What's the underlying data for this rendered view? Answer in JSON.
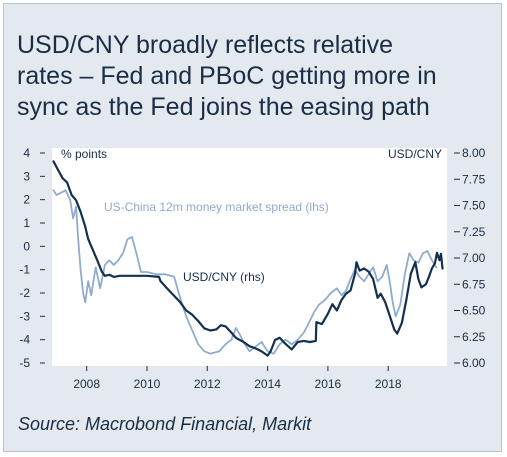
{
  "title_lines": [
    "USD/CNY broadly reflects relative",
    "rates – Fed and PBoC getting  more in",
    "sync as the Fed joins the easing path"
  ],
  "source": "Source: Macrobond Financial, Markit",
  "colors": {
    "frame_bg": "#e3e9ef",
    "plot_bg": "#ffffff",
    "usd_cny": "#14304f",
    "spread": "#8faccc",
    "text": "#1a2d45"
  },
  "chart_data": {
    "type": "line",
    "x_ticks": [
      "2008",
      "2010",
      "2012",
      "2014",
      "2016",
      "2018"
    ],
    "y_left": {
      "label": "% points",
      "ticks": [
        "4",
        "3",
        "2",
        "1",
        "0",
        "-1",
        "-2",
        "-3",
        "-4",
        "-5"
      ],
      "range": [
        -5,
        4
      ]
    },
    "y_right": {
      "label": "USD/CNY",
      "ticks": [
        "8.00",
        "7.75",
        "7.50",
        "7.25",
        "7.00",
        "6.75",
        "6.50",
        "6.25",
        "6.00"
      ],
      "range": [
        6.0,
        8.0
      ]
    },
    "grid": false,
    "series": [
      {
        "name": "US-China 12m money market spread (lhs)",
        "axis": "left",
        "color": "#8faccc",
        "points": [
          [
            2006.9,
            2.4
          ],
          [
            2007.0,
            2.2
          ],
          [
            2007.15,
            2.3
          ],
          [
            2007.3,
            2.4
          ],
          [
            2007.45,
            2.0
          ],
          [
            2007.55,
            1.2
          ],
          [
            2007.65,
            1.7
          ],
          [
            2007.72,
            0.3
          ],
          [
            2007.8,
            -1.0
          ],
          [
            2007.88,
            -2.0
          ],
          [
            2007.95,
            -2.4
          ],
          [
            2008.05,
            -1.5
          ],
          [
            2008.15,
            -2.1
          ],
          [
            2008.3,
            -0.9
          ],
          [
            2008.45,
            -1.8
          ],
          [
            2008.6,
            -0.8
          ],
          [
            2008.75,
            -0.6
          ],
          [
            2008.9,
            -0.8
          ],
          [
            2009.05,
            -0.6
          ],
          [
            2009.2,
            -0.3
          ],
          [
            2009.35,
            0.3
          ],
          [
            2009.5,
            0.4
          ],
          [
            2009.65,
            -0.3
          ],
          [
            2009.8,
            -1.1
          ],
          [
            2010.0,
            -1.1
          ],
          [
            2010.3,
            -1.2
          ],
          [
            2010.6,
            -1.2
          ],
          [
            2010.9,
            -1.3
          ],
          [
            2011.1,
            -2.2
          ],
          [
            2011.3,
            -3.0
          ],
          [
            2011.5,
            -3.6
          ],
          [
            2011.7,
            -4.2
          ],
          [
            2011.9,
            -4.5
          ],
          [
            2012.1,
            -4.6
          ],
          [
            2012.4,
            -4.5
          ],
          [
            2012.6,
            -4.2
          ],
          [
            2012.8,
            -4.0
          ],
          [
            2012.95,
            -3.5
          ],
          [
            2013.05,
            -3.7
          ],
          [
            2013.2,
            -4.1
          ],
          [
            2013.4,
            -4.5
          ],
          [
            2013.6,
            -4.3
          ],
          [
            2013.8,
            -4.1
          ],
          [
            2014.0,
            -4.5
          ],
          [
            2014.2,
            -4.6
          ],
          [
            2014.4,
            -4.2
          ],
          [
            2014.6,
            -4.0
          ],
          [
            2014.8,
            -4.2
          ],
          [
            2015.0,
            -4.0
          ],
          [
            2015.2,
            -3.7
          ],
          [
            2015.4,
            -3.2
          ],
          [
            2015.55,
            -2.8
          ],
          [
            2015.7,
            -2.5
          ],
          [
            2015.9,
            -2.3
          ],
          [
            2016.1,
            -2.0
          ],
          [
            2016.3,
            -1.8
          ],
          [
            2016.45,
            -2.1
          ],
          [
            2016.6,
            -1.9
          ],
          [
            2016.75,
            -1.4
          ],
          [
            2016.9,
            -1.0
          ],
          [
            2017.05,
            -1.3
          ],
          [
            2017.2,
            -1.5
          ],
          [
            2017.35,
            -1.2
          ],
          [
            2017.5,
            -0.9
          ],
          [
            2017.65,
            -1.5
          ],
          [
            2017.8,
            -1.3
          ],
          [
            2017.95,
            -0.8
          ],
          [
            2018.05,
            -1.5
          ],
          [
            2018.15,
            -2.4
          ],
          [
            2018.25,
            -3.0
          ],
          [
            2018.4,
            -2.5
          ],
          [
            2018.55,
            -1.2
          ],
          [
            2018.7,
            -0.3
          ],
          [
            2018.85,
            -0.6
          ],
          [
            2019.0,
            -0.7
          ],
          [
            2019.15,
            -0.3
          ],
          [
            2019.3,
            -0.2
          ],
          [
            2019.45,
            -0.6
          ],
          [
            2019.6,
            -0.9
          ]
        ]
      },
      {
        "name": "USD/CNY (rhs)",
        "axis": "right",
        "color": "#14304f",
        "points": [
          [
            2006.9,
            7.92
          ],
          [
            2007.05,
            7.84
          ],
          [
            2007.2,
            7.76
          ],
          [
            2007.35,
            7.72
          ],
          [
            2007.5,
            7.6
          ],
          [
            2007.65,
            7.55
          ],
          [
            2007.8,
            7.44
          ],
          [
            2007.95,
            7.3
          ],
          [
            2008.05,
            7.18
          ],
          [
            2008.2,
            7.08
          ],
          [
            2008.35,
            6.98
          ],
          [
            2008.5,
            6.87
          ],
          [
            2008.6,
            6.83
          ],
          [
            2008.75,
            6.84
          ],
          [
            2008.9,
            6.82
          ],
          [
            2009.1,
            6.83
          ],
          [
            2009.5,
            6.83
          ],
          [
            2010.0,
            6.83
          ],
          [
            2010.4,
            6.82
          ],
          [
            2010.45,
            6.78
          ],
          [
            2010.7,
            6.7
          ],
          [
            2010.9,
            6.64
          ],
          [
            2011.1,
            6.58
          ],
          [
            2011.3,
            6.5
          ],
          [
            2011.5,
            6.46
          ],
          [
            2011.7,
            6.4
          ],
          [
            2011.9,
            6.33
          ],
          [
            2012.1,
            6.31
          ],
          [
            2012.3,
            6.32
          ],
          [
            2012.45,
            6.36
          ],
          [
            2012.6,
            6.35
          ],
          [
            2012.8,
            6.29
          ],
          [
            2012.95,
            6.24
          ],
          [
            2013.2,
            6.2
          ],
          [
            2013.4,
            6.16
          ],
          [
            2013.6,
            6.14
          ],
          [
            2013.8,
            6.11
          ],
          [
            2014.0,
            6.07
          ],
          [
            2014.1,
            6.11
          ],
          [
            2014.25,
            6.22
          ],
          [
            2014.4,
            6.24
          ],
          [
            2014.6,
            6.18
          ],
          [
            2014.8,
            6.13
          ],
          [
            2015.0,
            6.2
          ],
          [
            2015.2,
            6.21
          ],
          [
            2015.4,
            6.2
          ],
          [
            2015.6,
            6.21
          ],
          [
            2015.62,
            6.39
          ],
          [
            2015.8,
            6.37
          ],
          [
            2016.0,
            6.47
          ],
          [
            2016.15,
            6.56
          ],
          [
            2016.3,
            6.5
          ],
          [
            2016.45,
            6.6
          ],
          [
            2016.6,
            6.66
          ],
          [
            2016.75,
            6.69
          ],
          [
            2016.9,
            6.85
          ],
          [
            2016.95,
            6.96
          ],
          [
            2017.05,
            6.88
          ],
          [
            2017.2,
            6.9
          ],
          [
            2017.35,
            6.87
          ],
          [
            2017.5,
            6.8
          ],
          [
            2017.65,
            6.62
          ],
          [
            2017.75,
            6.66
          ],
          [
            2017.9,
            6.58
          ],
          [
            2018.05,
            6.45
          ],
          [
            2018.2,
            6.32
          ],
          [
            2018.3,
            6.28
          ],
          [
            2018.45,
            6.38
          ],
          [
            2018.6,
            6.6
          ],
          [
            2018.75,
            6.85
          ],
          [
            2018.9,
            6.96
          ],
          [
            2019.0,
            6.8
          ],
          [
            2019.1,
            6.72
          ],
          [
            2019.25,
            6.75
          ],
          [
            2019.35,
            6.82
          ],
          [
            2019.45,
            6.9
          ],
          [
            2019.55,
            6.95
          ],
          [
            2019.62,
            7.05
          ],
          [
            2019.7,
            6.98
          ],
          [
            2019.75,
            7.04
          ],
          [
            2019.8,
            6.9
          ]
        ]
      }
    ],
    "annotations": [
      {
        "text": "US-China 12m money market spread (lhs)",
        "series": 0
      },
      {
        "text": "USD/CNY (rhs)",
        "series": 1
      }
    ]
  }
}
